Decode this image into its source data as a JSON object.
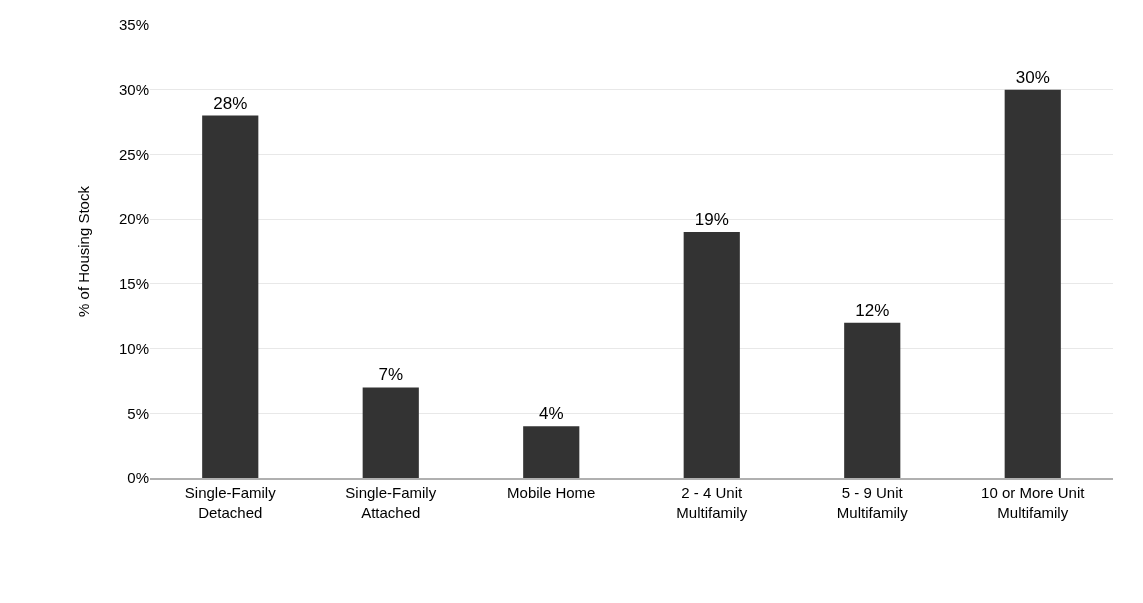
{
  "chart_data": {
    "type": "bar",
    "ylabel": "% of Housing Stock",
    "categories": [
      "Single-Family\nDetached",
      "Single-Family\nAttached",
      "Mobile Home",
      "2 - 4 Unit\nMultifamily",
      "5 - 9 Unit\nMultifamily",
      "10 or More Unit\nMultifamily"
    ],
    "values": [
      28,
      7,
      4,
      19,
      12,
      30
    ],
    "value_labels": [
      "28%",
      "7%",
      "4%",
      "19%",
      "12%",
      "30%"
    ],
    "color": "#333333",
    "ylim": [
      0,
      35
    ],
    "yticks": [
      {
        "value": 0,
        "label": "0%"
      },
      {
        "value": 5,
        "label": "5%"
      },
      {
        "value": 10,
        "label": "10%"
      },
      {
        "value": 15,
        "label": "15%"
      },
      {
        "value": 20,
        "label": "20%"
      },
      {
        "value": 25,
        "label": "25%"
      },
      {
        "value": 30,
        "label": "30%"
      },
      {
        "value": 35,
        "label": "35%"
      }
    ],
    "grid": "y"
  }
}
